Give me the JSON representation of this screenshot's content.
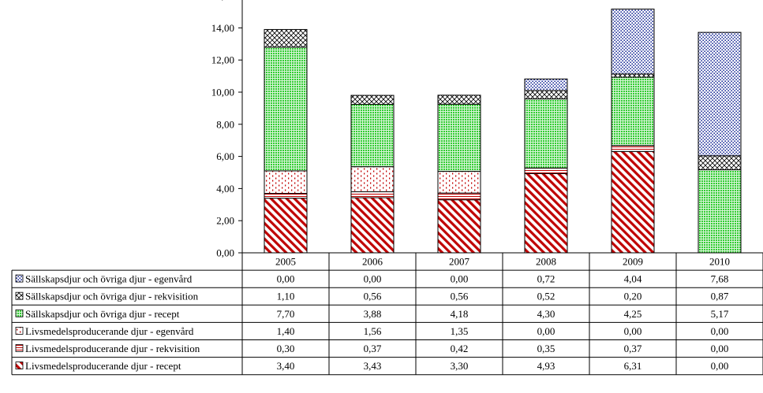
{
  "chart_data": {
    "type": "bar",
    "stacked": true,
    "categories": [
      "2005",
      "2006",
      "2007",
      "2008",
      "2009",
      "2010"
    ],
    "ylim": [
      0,
      16
    ],
    "ytick_step": 2,
    "ytick_format": "comma-2-decimals",
    "grid": false,
    "legend": "data-table-below",
    "series": [
      {
        "name": "Livsmedelsproducerande djur - recept",
        "values": [
          3.4,
          3.43,
          3.3,
          4.93,
          6.31,
          0.0
        ],
        "color": "#c00000",
        "pattern": "diagonal-hatch",
        "values_display": [
          "3,40",
          "3,43",
          "3,30",
          "4,93",
          "6,31",
          "0,00"
        ]
      },
      {
        "name": "Livsmedelsproducerande djur - rekvisition",
        "values": [
          0.3,
          0.37,
          0.42,
          0.35,
          0.37,
          0.0
        ],
        "color": "#c00000",
        "pattern": "horizontal-lines",
        "values_display": [
          "0,30",
          "0,37",
          "0,42",
          "0,35",
          "0,37",
          "0,00"
        ]
      },
      {
        "name": "Livsmedelsproducerande djur - egenvård",
        "values": [
          1.4,
          1.56,
          1.35,
          0.0,
          0.0,
          0.0
        ],
        "color": "#c00000",
        "pattern": "dots",
        "values_display": [
          "1,40",
          "1,56",
          "1,35",
          "0,00",
          "0,00",
          "0,00"
        ]
      },
      {
        "name": "Sällskapsdjur och övriga djur - recept",
        "values": [
          7.7,
          3.88,
          4.18,
          4.3,
          4.25,
          5.17
        ],
        "color": "#33cc33",
        "pattern": "grid",
        "values_display": [
          "7,70",
          "3,88",
          "4,18",
          "4,30",
          "4,25",
          "5,17"
        ]
      },
      {
        "name": "Sällskapsdjur och övriga djur - rekvisition",
        "values": [
          1.1,
          0.56,
          0.56,
          0.52,
          0.2,
          0.87
        ],
        "color": "#000000",
        "pattern": "crosshatch",
        "values_display": [
          "1,10",
          "0,56",
          "0,56",
          "0,52",
          "0,20",
          "0,87"
        ]
      },
      {
        "name": "Sällskapsdjur och övriga djur - egenvård",
        "values": [
          0.0,
          0.0,
          0.0,
          0.72,
          4.04,
          7.68
        ],
        "color": "#1f2f99",
        "pattern": "dense-dots",
        "values_display": [
          "0,00",
          "0,00",
          "0,00",
          "0,72",
          "4,04",
          "7,68"
        ]
      }
    ]
  }
}
